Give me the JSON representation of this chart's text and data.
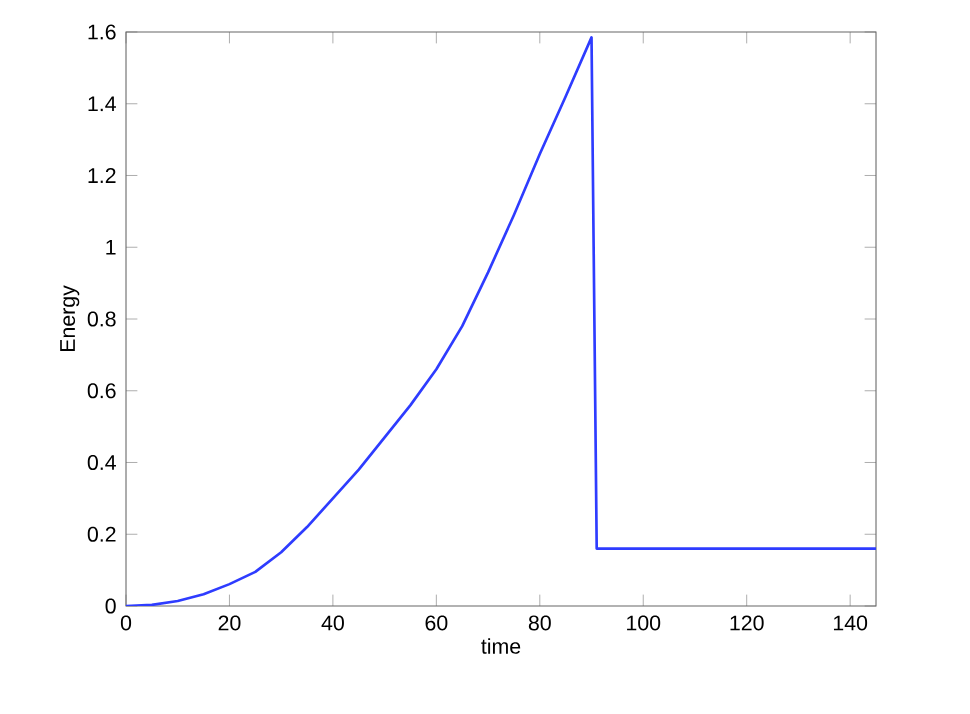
{
  "chart_data": {
    "type": "line",
    "xlabel": "time",
    "ylabel": "Energy",
    "x": [
      0,
      5,
      10,
      15,
      20,
      25,
      30,
      35,
      40,
      45,
      50,
      55,
      60,
      65,
      70,
      75,
      80,
      85,
      90,
      91,
      145
    ],
    "series": [
      {
        "color": "#2e3cff",
        "values": [
          0,
          0.003,
          0.014,
          0.033,
          0.061,
          0.095,
          0.15,
          0.22,
          0.3,
          0.38,
          0.47,
          0.56,
          0.66,
          0.78,
          0.93,
          1.09,
          1.26,
          1.42,
          1.585,
          0.16,
          0.16
        ]
      }
    ],
    "xlim": [
      0,
      145
    ],
    "ylim": [
      0,
      1.6
    ],
    "xticks": [
      0,
      20,
      40,
      60,
      80,
      100,
      120,
      140
    ],
    "yticks": [
      0,
      0.2,
      0.4,
      0.6,
      0.8,
      1,
      1.2,
      1.4,
      1.6
    ],
    "marker": "none",
    "line_style": "solid"
  }
}
